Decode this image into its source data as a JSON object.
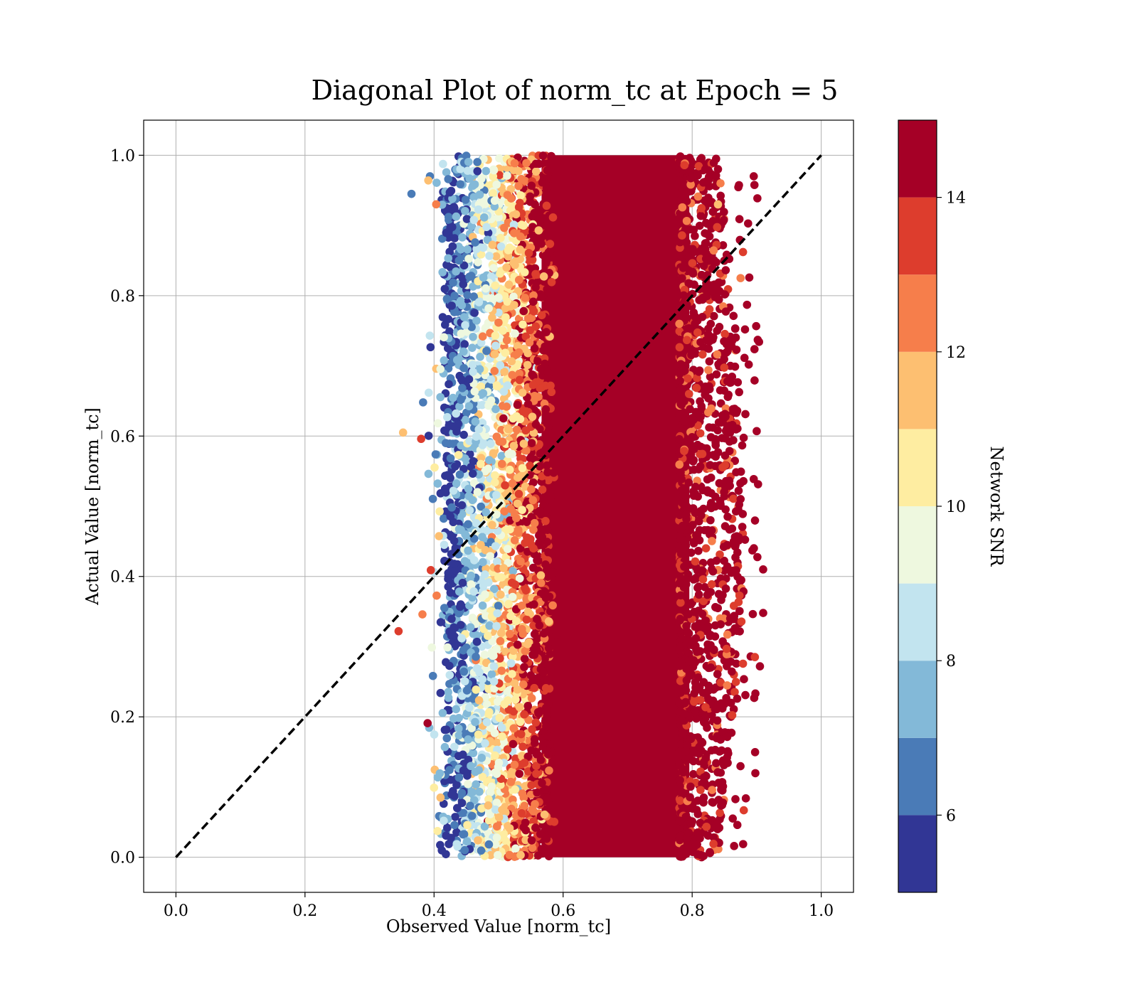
{
  "chart_data": {
    "type": "scatter",
    "title": "Diagonal Plot of norm_tc at Epoch = 5",
    "xlabel": "Observed Value [norm_tc]",
    "ylabel": "Actual Value [norm_tc]",
    "xlim": [
      -0.05,
      1.05
    ],
    "ylim": [
      -0.05,
      1.05
    ],
    "x_ticks": [
      "0.0",
      "0.2",
      "0.4",
      "0.6",
      "0.8",
      "1.0"
    ],
    "y_ticks": [
      "0.0",
      "0.2",
      "0.4",
      "0.6",
      "0.8",
      "1.0"
    ],
    "grid": true,
    "reference_line": {
      "style": "dashed",
      "color": "#000000",
      "from": [
        0,
        0
      ],
      "to": [
        1,
        1
      ]
    },
    "colorbar": {
      "label": "Network SNR",
      "range": [
        5,
        15
      ],
      "ticks": [
        "6",
        "8",
        "10",
        "12",
        "14"
      ],
      "levels": [
        {
          "from": 5,
          "to": 6,
          "color": "#313695"
        },
        {
          "from": 6,
          "to": 7,
          "color": "#4a7bb7"
        },
        {
          "from": 7,
          "to": 8,
          "color": "#83b9d8"
        },
        {
          "from": 8,
          "to": 9,
          "color": "#c2e4ef"
        },
        {
          "from": 9,
          "to": 10,
          "color": "#eef8df"
        },
        {
          "from": 10,
          "to": 11,
          "color": "#feeda1"
        },
        {
          "from": 11,
          "to": 12,
          "color": "#fdbf71"
        },
        {
          "from": 12,
          "to": 13,
          "color": "#f67e4b"
        },
        {
          "from": 13,
          "to": 14,
          "color": "#dd3d2d"
        },
        {
          "from": 14,
          "to": 15,
          "color": "#a50026"
        }
      ]
    },
    "distribution": {
      "y_range": [
        0,
        1
      ],
      "x_spread": [
        0.34,
        0.91
      ],
      "dense_core_x": [
        0.56,
        0.8
      ],
      "snr_trend": "low SNR (blue) at observed ~0.40-0.48, rising to high SNR (dark red) for observed >= 0.56",
      "sample_points": [
        {
          "x": 0.365,
          "y": 0.945,
          "snr": 6.5
        },
        {
          "x": 0.383,
          "y": 0.648,
          "snr": 6.5
        },
        {
          "x": 0.352,
          "y": 0.605,
          "snr": 11.5
        },
        {
          "x": 0.38,
          "y": 0.596,
          "snr": 13.5
        },
        {
          "x": 0.345,
          "y": 0.322,
          "snr": 13.5
        },
        {
          "x": 0.382,
          "y": 0.346,
          "snr": 12.5
        },
        {
          "x": 0.39,
          "y": 0.191,
          "snr": 14.5
        },
        {
          "x": 0.41,
          "y": 0.085,
          "snr": 11.5
        },
        {
          "x": 0.415,
          "y": 0.052,
          "snr": 8.5
        },
        {
          "x": 0.395,
          "y": 0.409,
          "snr": 13.5
        },
        {
          "x": 0.41,
          "y": 0.234,
          "snr": 5.5
        },
        {
          "x": 0.9,
          "y": 0.607,
          "snr": 14.5
        },
        {
          "x": 0.91,
          "y": 0.41,
          "snr": 14.5
        },
        {
          "x": 0.91,
          "y": 0.348,
          "snr": 14.5
        },
        {
          "x": 0.905,
          "y": 0.272,
          "snr": 14.5
        },
        {
          "x": 0.885,
          "y": 0.787,
          "snr": 14.5
        },
        {
          "x": 0.875,
          "y": 0.825,
          "snr": 12.5
        },
        {
          "x": 0.865,
          "y": 0.016,
          "snr": 14.5
        },
        {
          "x": 0.87,
          "y": 0.046,
          "snr": 14.5
        },
        {
          "x": 0.84,
          "y": 0.93,
          "snr": 11.5
        }
      ]
    }
  }
}
